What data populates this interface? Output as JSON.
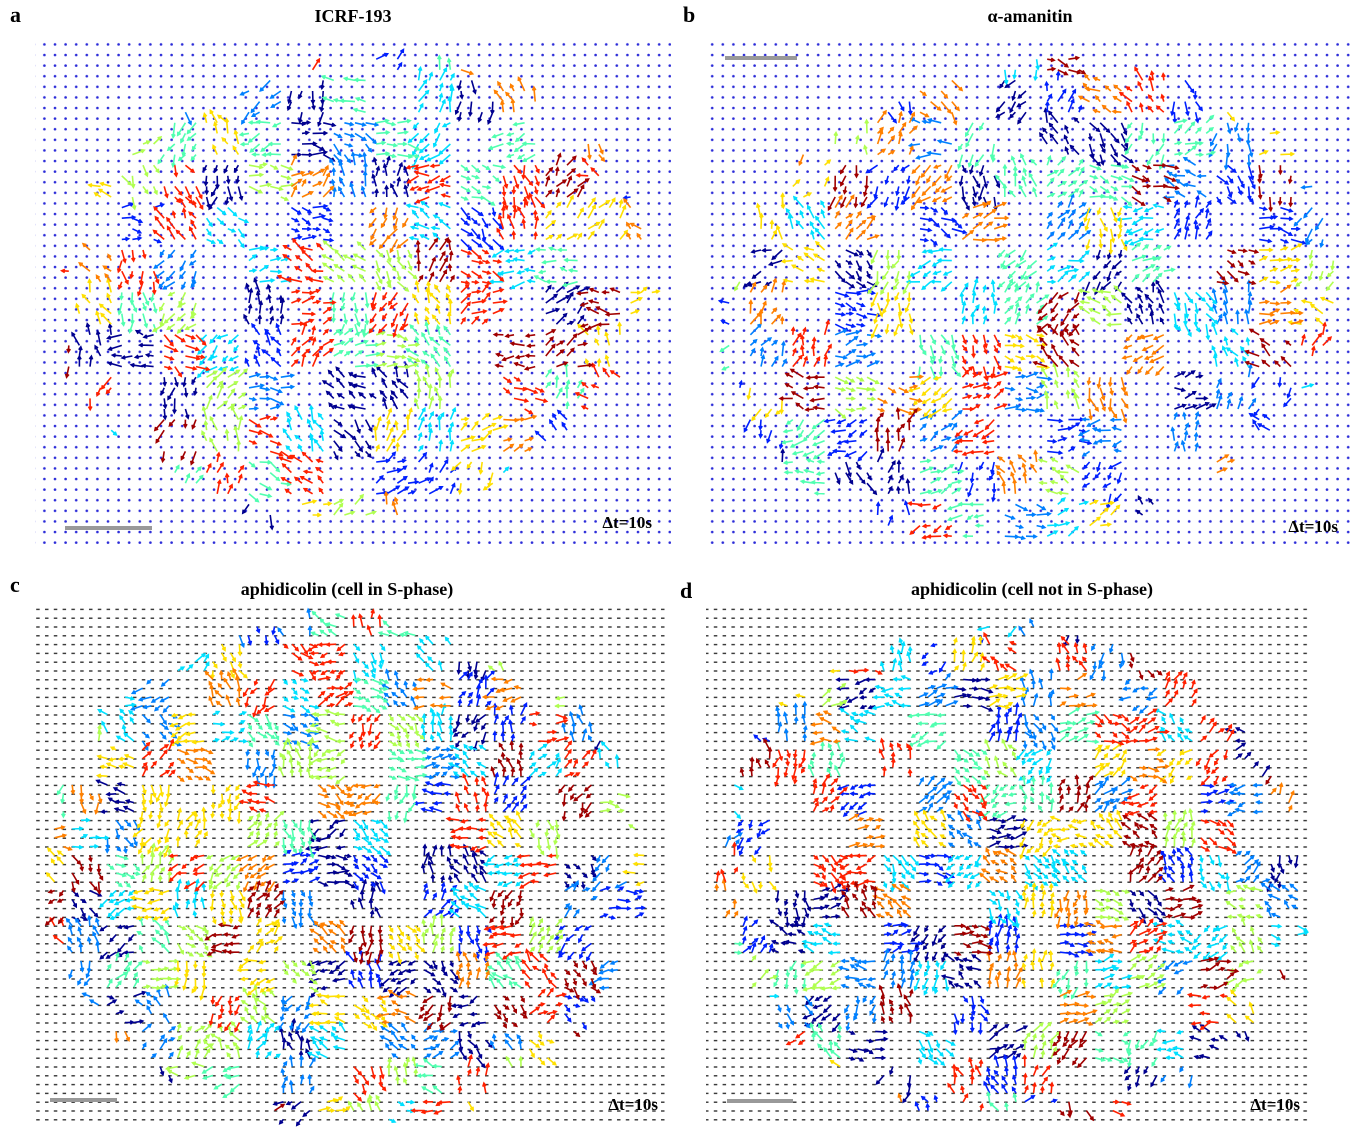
{
  "panels": [
    {
      "letter": "a",
      "title": "ICRF-193",
      "time_label": "Δt=10s"
    },
    {
      "letter": "b",
      "title": "α-amanitin",
      "time_label": "Δt=10s"
    },
    {
      "letter": "c",
      "title": "aphidicolin (cell in S-phase)",
      "time_label": "Δt=10s"
    },
    {
      "letter": "d",
      "title": "aphidicolin (cell not in S-phase)",
      "time_label": "Δt=10s"
    }
  ]
}
